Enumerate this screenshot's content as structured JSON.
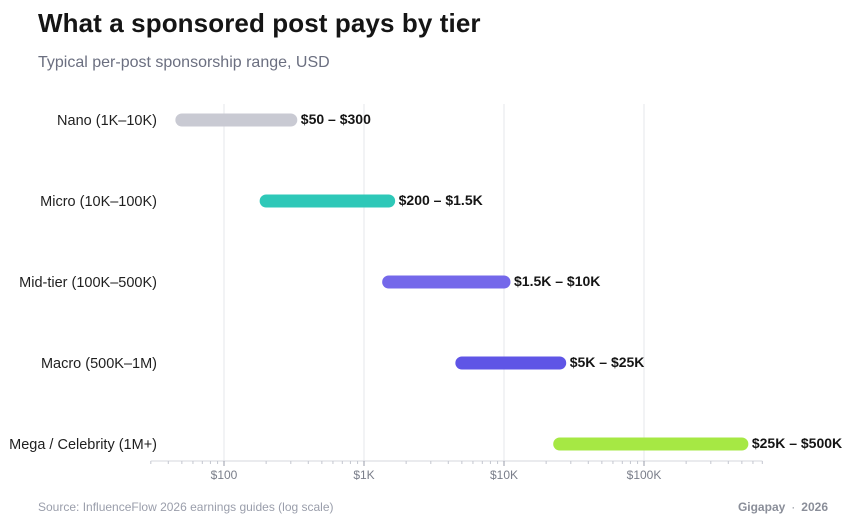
{
  "title": "What a sponsored post pays by tier",
  "subtitle": "Typical per-post sponsorship range, USD",
  "footer": {
    "source": "Source: InfluenceFlow 2026 earnings guides (log scale)",
    "brand": "Gigapay",
    "separator": "·",
    "year": "2026"
  },
  "chart_data": {
    "type": "bar",
    "orientation": "horizontal-range",
    "x_scale": "log",
    "xlim": [
      30,
      700000
    ],
    "x_ticks": [
      {
        "value": 100,
        "label": "$100"
      },
      {
        "value": 1000,
        "label": "$1K"
      },
      {
        "value": 10000,
        "label": "$10K"
      },
      {
        "value": 100000,
        "label": "$100K"
      }
    ],
    "grid": true,
    "categories": [
      {
        "label": "Nano  (1K–10K)",
        "low": 50,
        "high": 300,
        "range_label": "$50 – $300",
        "color": "#c9cad3"
      },
      {
        "label": "Micro  (10K–100K)",
        "low": 200,
        "high": 1500,
        "range_label": "$200 – $1.5K",
        "color": "#2ec8b8"
      },
      {
        "label": "Mid-tier  (100K–500K)",
        "low": 1500,
        "high": 10000,
        "range_label": "$1.5K – $10K",
        "color": "#7468ea"
      },
      {
        "label": "Macro  (500K–1M)",
        "low": 5000,
        "high": 25000,
        "range_label": "$5K – $25K",
        "color": "#5f55e6"
      },
      {
        "label": "Mega / Celebrity  (1M+)",
        "low": 25000,
        "high": 500000,
        "range_label": "$25K – $500K",
        "color": "#a6e844"
      }
    ]
  }
}
